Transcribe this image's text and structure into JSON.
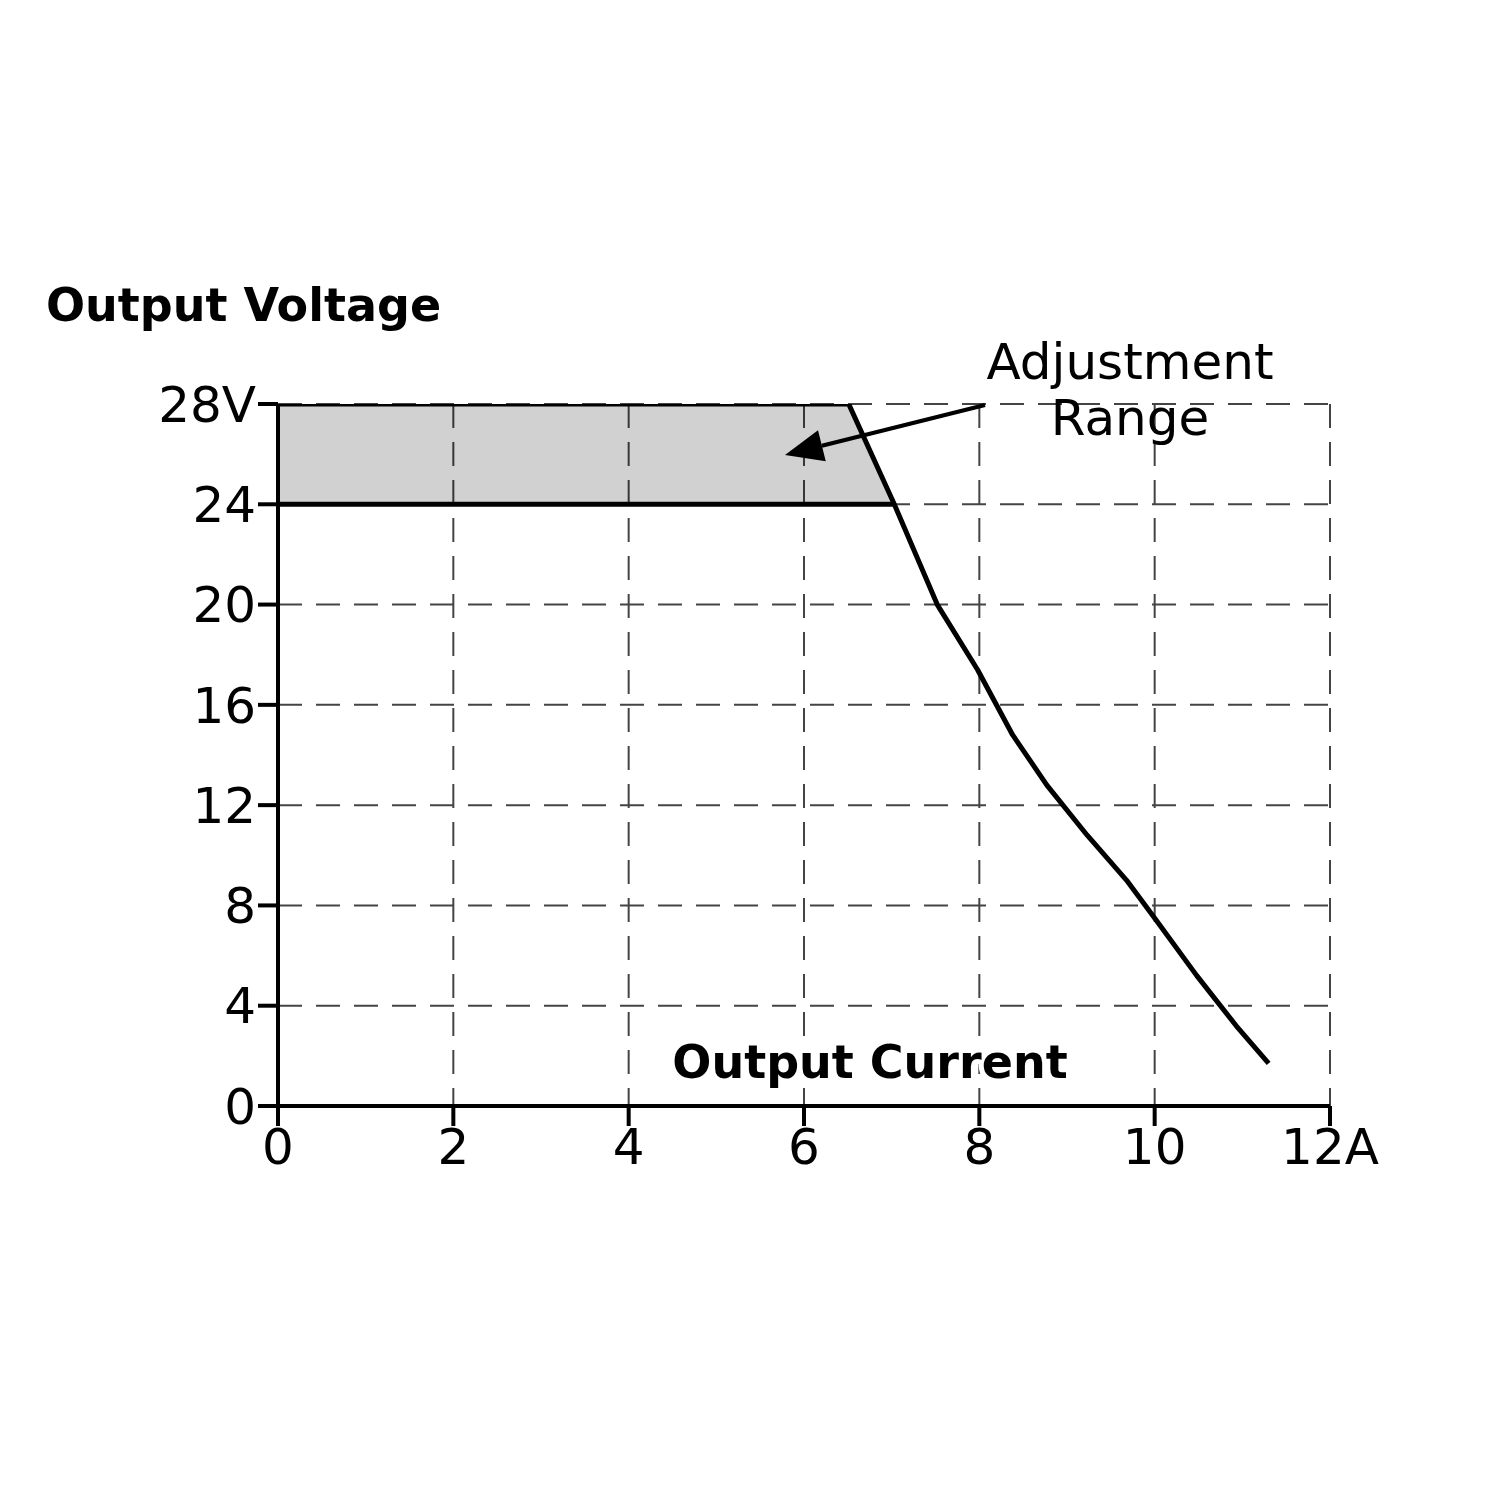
{
  "chart_data": {
    "type": "line",
    "xlabel": "Output Current",
    "ylabel": "Output Voltage",
    "xlim": [
      0,
      12
    ],
    "ylim": [
      0,
      28
    ],
    "xticks": [
      0,
      2,
      4,
      6,
      8,
      10,
      {
        "value": 12,
        "label": "12A"
      }
    ],
    "yticks": [
      0,
      4,
      8,
      12,
      16,
      20,
      24,
      {
        "value": 28,
        "label": "28V"
      }
    ],
    "grid": true,
    "line_style": "solid",
    "marker": "none",
    "annotations": [
      "Adjustment Range"
    ],
    "series": [
      {
        "color": "#000000",
        "x": [
          0,
          6.51,
          7.03,
          7.52,
          7.98,
          8.38,
          8.77,
          9.23,
          9.68,
          10.02,
          10.48,
          10.93,
          11.3
        ],
        "values": [
          28,
          28,
          24,
          20,
          17.4,
          14.8,
          12.8,
          10.8,
          9,
          7.4,
          5.2,
          3.2,
          1.7
        ],
        "lower": [
          24,
          24,
          24,
          null,
          null,
          null,
          null,
          null,
          null,
          null,
          null,
          null,
          null
        ],
        "upper": [
          28,
          28,
          24,
          null,
          null,
          null,
          null,
          null,
          null,
          null,
          null,
          null,
          null
        ]
      },
      {
        "color": "#000000",
        "x": [
          0,
          7.03
        ],
        "values": [
          24,
          24
        ]
      }
    ]
  }
}
